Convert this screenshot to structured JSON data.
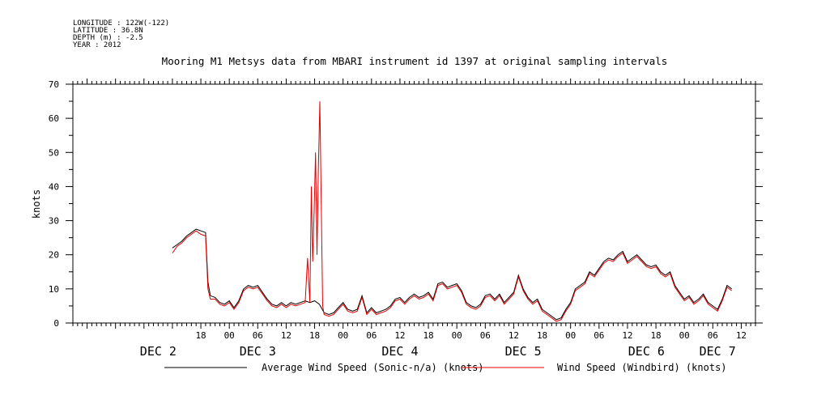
{
  "header": {
    "longitude": "LONGITUDE : 122W(-122)",
    "latitude": "LATITUDE : 36.8N",
    "depth": "DEPTH (m) : -2.5",
    "year": "YEAR : 2012"
  },
  "chart_data": {
    "type": "line",
    "title": "Mooring M1 Metsys data from MBARI instrument id 1397 at original sampling intervals",
    "xlabel": "",
    "ylabel": "knots",
    "ylim": [
      0,
      70
    ],
    "y_ticks": [
      0,
      10,
      20,
      30,
      40,
      50,
      60,
      70
    ],
    "grid": false,
    "legend_position": "bottom",
    "x_domain_hours": [
      -9,
      135
    ],
    "hour_ticks": [
      {
        "h": 18,
        "label": "18"
      },
      {
        "h": 24,
        "label": "00"
      },
      {
        "h": 30,
        "label": "06"
      },
      {
        "h": 36,
        "label": "12"
      },
      {
        "h": 42,
        "label": "18"
      },
      {
        "h": 48,
        "label": "00"
      },
      {
        "h": 54,
        "label": "06"
      },
      {
        "h": 60,
        "label": "12"
      },
      {
        "h": 66,
        "label": "18"
      },
      {
        "h": 72,
        "label": "00"
      },
      {
        "h": 78,
        "label": "06"
      },
      {
        "h": 84,
        "label": "12"
      },
      {
        "h": 90,
        "label": "18"
      },
      {
        "h": 96,
        "label": "00"
      },
      {
        "h": 102,
        "label": "06"
      },
      {
        "h": 108,
        "label": "12"
      },
      {
        "h": 114,
        "label": "18"
      },
      {
        "h": 120,
        "label": "00"
      },
      {
        "h": 126,
        "label": "06"
      },
      {
        "h": 132,
        "label": "12"
      }
    ],
    "day_labels": [
      {
        "h": 9,
        "label": "DEC  2"
      },
      {
        "h": 30,
        "label": "DEC  3"
      },
      {
        "h": 60,
        "label": "DEC  4"
      },
      {
        "h": 86,
        "label": "DEC  5"
      },
      {
        "h": 112,
        "label": "DEC  6"
      },
      {
        "h": 127,
        "label": "DEC  7"
      }
    ],
    "series": [
      {
        "name": "Average Wind Speed (Sonic-n/a) (knots)",
        "color": "#000000",
        "points": [
          [
            12,
            22
          ],
          [
            13,
            23
          ],
          [
            14,
            24
          ],
          [
            15,
            25.5
          ],
          [
            16,
            26.5
          ],
          [
            17,
            27.5
          ],
          [
            18,
            27
          ],
          [
            19,
            26.5
          ],
          [
            19.5,
            12
          ],
          [
            20,
            8
          ],
          [
            21,
            7.5
          ],
          [
            22,
            6
          ],
          [
            23,
            5.5
          ],
          [
            24,
            6.5
          ],
          [
            25,
            4.5
          ],
          [
            26,
            6.5
          ],
          [
            27,
            10
          ],
          [
            28,
            11
          ],
          [
            29,
            10.5
          ],
          [
            30,
            11
          ],
          [
            31,
            9
          ],
          [
            32,
            7
          ],
          [
            33,
            5.5
          ],
          [
            34,
            5
          ],
          [
            35,
            6
          ],
          [
            36,
            5
          ],
          [
            37,
            6
          ],
          [
            38,
            5.5
          ],
          [
            39,
            6
          ],
          [
            40,
            6.5
          ],
          [
            41,
            6
          ],
          [
            42,
            6.5
          ],
          [
            43,
            5.5
          ],
          [
            44,
            3
          ],
          [
            45,
            2.5
          ],
          [
            46,
            3
          ],
          [
            47,
            4.5
          ],
          [
            48,
            6
          ],
          [
            49,
            4
          ],
          [
            50,
            3.5
          ],
          [
            51,
            4
          ],
          [
            52,
            8
          ],
          [
            53,
            3
          ],
          [
            54,
            4.5
          ],
          [
            55,
            3
          ],
          [
            56,
            3.5
          ],
          [
            57,
            4
          ],
          [
            58,
            5
          ],
          [
            59,
            7
          ],
          [
            60,
            7.5
          ],
          [
            61,
            6
          ],
          [
            62,
            7.5
          ],
          [
            63,
            8.5
          ],
          [
            64,
            7.5
          ],
          [
            65,
            8
          ],
          [
            66,
            9
          ],
          [
            67,
            7
          ],
          [
            68,
            11.5
          ],
          [
            69,
            12
          ],
          [
            70,
            10.5
          ],
          [
            71,
            11
          ],
          [
            72,
            11.5
          ],
          [
            73,
            9.5
          ],
          [
            74,
            6
          ],
          [
            75,
            5
          ],
          [
            76,
            4.5
          ],
          [
            77,
            5.5
          ],
          [
            78,
            8
          ],
          [
            79,
            8.5
          ],
          [
            80,
            7
          ],
          [
            81,
            8.5
          ],
          [
            82,
            6
          ],
          [
            83,
            7.5
          ],
          [
            84,
            9
          ],
          [
            85,
            14
          ],
          [
            86,
            10
          ],
          [
            87,
            7.5
          ],
          [
            88,
            6
          ],
          [
            89,
            7
          ],
          [
            90,
            4
          ],
          [
            91,
            3
          ],
          [
            92,
            2
          ],
          [
            93,
            1
          ],
          [
            94,
            1.5
          ],
          [
            95,
            4
          ],
          [
            96,
            6
          ],
          [
            97,
            10
          ],
          [
            98,
            11
          ],
          [
            99,
            12
          ],
          [
            100,
            15
          ],
          [
            101,
            14
          ],
          [
            102,
            16
          ],
          [
            103,
            18
          ],
          [
            104,
            19
          ],
          [
            105,
            18.5
          ],
          [
            106,
            20
          ],
          [
            107,
            21
          ],
          [
            108,
            18
          ],
          [
            109,
            19
          ],
          [
            110,
            20
          ],
          [
            111,
            18.5
          ],
          [
            112,
            17
          ],
          [
            113,
            16.5
          ],
          [
            114,
            17
          ],
          [
            115,
            15
          ],
          [
            116,
            14
          ],
          [
            117,
            15
          ],
          [
            118,
            11
          ],
          [
            119,
            9
          ],
          [
            120,
            7
          ],
          [
            121,
            8
          ],
          [
            122,
            6
          ],
          [
            123,
            7
          ],
          [
            124,
            8.5
          ],
          [
            125,
            6
          ],
          [
            126,
            5
          ],
          [
            127,
            4
          ],
          [
            128,
            7
          ],
          [
            129,
            11
          ],
          [
            130,
            10
          ]
        ]
      },
      {
        "name": "Wind Speed (Windbird) (knots)",
        "color": "#e00000",
        "points": [
          [
            12,
            20.5
          ],
          [
            13,
            22.5
          ],
          [
            14,
            23.5
          ],
          [
            15,
            25
          ],
          [
            16,
            26
          ],
          [
            17,
            27
          ],
          [
            18,
            26
          ],
          [
            19,
            25.5
          ],
          [
            19.5,
            10
          ],
          [
            20,
            7
          ],
          [
            21,
            7
          ],
          [
            22,
            5.5
          ],
          [
            23,
            5
          ],
          [
            24,
            6
          ],
          [
            25,
            4
          ],
          [
            26,
            6
          ],
          [
            27,
            9.5
          ],
          [
            28,
            10.5
          ],
          [
            29,
            10
          ],
          [
            30,
            10.5
          ],
          [
            31,
            8.5
          ],
          [
            32,
            6.5
          ],
          [
            33,
            5
          ],
          [
            34,
            4.5
          ],
          [
            35,
            5.5
          ],
          [
            36,
            4.5
          ],
          [
            37,
            5.5
          ],
          [
            38,
            5
          ],
          [
            39,
            5.5
          ],
          [
            40,
            6
          ],
          [
            40.5,
            19
          ],
          [
            41,
            6
          ],
          [
            41.3,
            40
          ],
          [
            41.6,
            18
          ],
          [
            41.9,
            33
          ],
          [
            42.2,
            50
          ],
          [
            42.5,
            20
          ],
          [
            42.8,
            45
          ],
          [
            43.1,
            65
          ],
          [
            43.4,
            34
          ],
          [
            43.7,
            5
          ],
          [
            44,
            2.5
          ],
          [
            45,
            2
          ],
          [
            46,
            2.5
          ],
          [
            47,
            4
          ],
          [
            48,
            5.5
          ],
          [
            49,
            3.5
          ],
          [
            50,
            3
          ],
          [
            51,
            3.5
          ],
          [
            52,
            7.5
          ],
          [
            53,
            2.5
          ],
          [
            54,
            4
          ],
          [
            55,
            2.5
          ],
          [
            56,
            3
          ],
          [
            57,
            3.5
          ],
          [
            58,
            4.5
          ],
          [
            59,
            6.5
          ],
          [
            60,
            7
          ],
          [
            61,
            5.5
          ],
          [
            62,
            7
          ],
          [
            63,
            8
          ],
          [
            64,
            7
          ],
          [
            65,
            7.5
          ],
          [
            66,
            8.5
          ],
          [
            67,
            6.5
          ],
          [
            68,
            11
          ],
          [
            69,
            11.5
          ],
          [
            70,
            10
          ],
          [
            71,
            10.5
          ],
          [
            72,
            11
          ],
          [
            73,
            9
          ],
          [
            74,
            5.5
          ],
          [
            75,
            4.5
          ],
          [
            76,
            4
          ],
          [
            77,
            5
          ],
          [
            78,
            7.5
          ],
          [
            79,
            8
          ],
          [
            80,
            6.5
          ],
          [
            81,
            8
          ],
          [
            82,
            5.5
          ],
          [
            83,
            7
          ],
          [
            84,
            8.5
          ],
          [
            85,
            13.5
          ],
          [
            86,
            9.5
          ],
          [
            87,
            7
          ],
          [
            88,
            5.5
          ],
          [
            89,
            6.5
          ],
          [
            90,
            3.5
          ],
          [
            91,
            2.5
          ],
          [
            92,
            1.5
          ],
          [
            93,
            0.5
          ],
          [
            94,
            1
          ],
          [
            95,
            3.5
          ],
          [
            96,
            5.5
          ],
          [
            97,
            9.5
          ],
          [
            98,
            10.5
          ],
          [
            99,
            11.5
          ],
          [
            100,
            14.5
          ],
          [
            101,
            13.5
          ],
          [
            102,
            15.5
          ],
          [
            103,
            17.5
          ],
          [
            104,
            18.5
          ],
          [
            105,
            18
          ],
          [
            106,
            19.5
          ],
          [
            107,
            20.5
          ],
          [
            108,
            17.5
          ],
          [
            109,
            18.5
          ],
          [
            110,
            19.5
          ],
          [
            111,
            18
          ],
          [
            112,
            16.5
          ],
          [
            113,
            16
          ],
          [
            114,
            16.5
          ],
          [
            115,
            14.5
          ],
          [
            116,
            13.5
          ],
          [
            117,
            14.5
          ],
          [
            118,
            10.5
          ],
          [
            119,
            8.5
          ],
          [
            120,
            6.5
          ],
          [
            121,
            7.5
          ],
          [
            122,
            5.5
          ],
          [
            123,
            6.5
          ],
          [
            124,
            8
          ],
          [
            125,
            5.5
          ],
          [
            126,
            4.5
          ],
          [
            127,
            3.5
          ],
          [
            128,
            6.5
          ],
          [
            129,
            10.5
          ],
          [
            130,
            9.5
          ]
        ]
      }
    ]
  }
}
